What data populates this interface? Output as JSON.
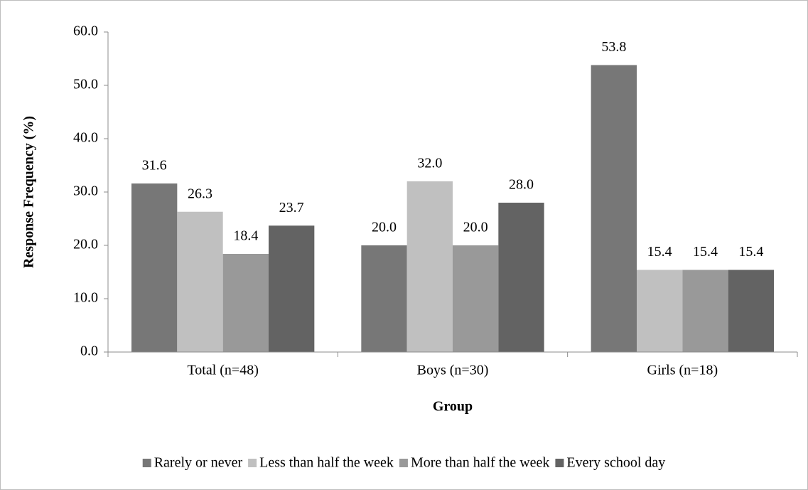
{
  "chart_data": {
    "type": "bar",
    "x_label": "Group",
    "y_label": "Response Frequency (%)",
    "categories": [
      "Total (n=48)",
      "Boys (n=30)",
      "Girls (n=18)"
    ],
    "series": [
      {
        "name": "Rarely or never",
        "color": "#777777",
        "values": [
          31.6,
          20,
          53.8
        ],
        "value_labels": [
          "31.6",
          "20.0",
          "53.8"
        ]
      },
      {
        "name": "Less than half the week",
        "color": "#c0c0c0",
        "values": [
          26.3,
          32,
          15.4
        ],
        "value_labels": [
          "26.3",
          "32.0",
          "15.4"
        ]
      },
      {
        "name": "More than half the week",
        "color": "#999999",
        "values": [
          18.4,
          20,
          15.4
        ],
        "value_labels": [
          "18.4",
          "20.0",
          "15.4"
        ]
      },
      {
        "name": "Every school day",
        "color": "#636363",
        "values": [
          23.7,
          28,
          15.4
        ],
        "value_labels": [
          "23.7",
          "28.0",
          "15.4"
        ]
      }
    ],
    "ylim": [
      0,
      60
    ],
    "yticks": [
      {
        "value": 0,
        "label": "0.0"
      },
      {
        "value": 10,
        "label": "10.0"
      },
      {
        "value": 20,
        "label": "20.0"
      },
      {
        "value": 30,
        "label": "30.0"
      },
      {
        "value": 40,
        "label": "40.0"
      },
      {
        "value": 50,
        "label": "50.0"
      },
      {
        "value": 60,
        "label": "60.0"
      }
    ],
    "grid": false,
    "legend": "bottom"
  }
}
